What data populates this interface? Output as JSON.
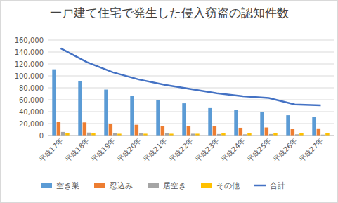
{
  "chart_data": {
    "type": "bar",
    "title": "一戸建て住宅で発生した侵入窃盗の認知件数",
    "categories": [
      "平成17年",
      "平成18年",
      "平成19年",
      "平成20年",
      "平成21年",
      "平成22年",
      "平成23年",
      "平成24年",
      "平成25年",
      "平成26年",
      "平成27年"
    ],
    "series": [
      {
        "name": "空き巣",
        "color": "#5b9bd5",
        "values": [
          111000,
          91000,
          77000,
          67000,
          59000,
          54000,
          46000,
          43000,
          40000,
          34000,
          31000
        ]
      },
      {
        "name": "忍込み",
        "color": "#ed7d31",
        "values": [
          23000,
          22000,
          20000,
          18000,
          16000,
          15500,
          16000,
          13000,
          13500,
          11000,
          12000
        ]
      },
      {
        "name": "居空き",
        "color": "#a5a5a5",
        "values": [
          6000,
          5000,
          4000,
          4000,
          3500,
          3000,
          2500,
          2000,
          2500,
          2000,
          1500
        ]
      },
      {
        "name": "その他",
        "color": "#ffc000",
        "values": [
          4000,
          3500,
          3000,
          3000,
          3000,
          3000,
          3500,
          3500,
          4000,
          4000,
          4000
        ]
      },
      {
        "name": "合計",
        "color": "#4472c4",
        "type": "line",
        "values": [
          146000,
          123000,
          106000,
          94000,
          85000,
          78000,
          71000,
          66000,
          63000,
          52000,
          50500
        ]
      }
    ],
    "ylim": [
      0,
      160000
    ],
    "yticks": [
      0,
      {
        "value": 20000,
        "label": "20,000"
      },
      {
        "value": 40000,
        "label": "40,000"
      },
      {
        "value": 60000,
        "label": "60,000"
      },
      {
        "value": 80000,
        "label": "80,000"
      },
      {
        "value": 100000,
        "label": "100,000"
      },
      {
        "value": 120000,
        "label": "120,000"
      },
      {
        "value": 140000,
        "label": "140,000"
      },
      {
        "value": 160000,
        "label": "160,000"
      }
    ],
    "grid": true,
    "legend": "bottom"
  }
}
